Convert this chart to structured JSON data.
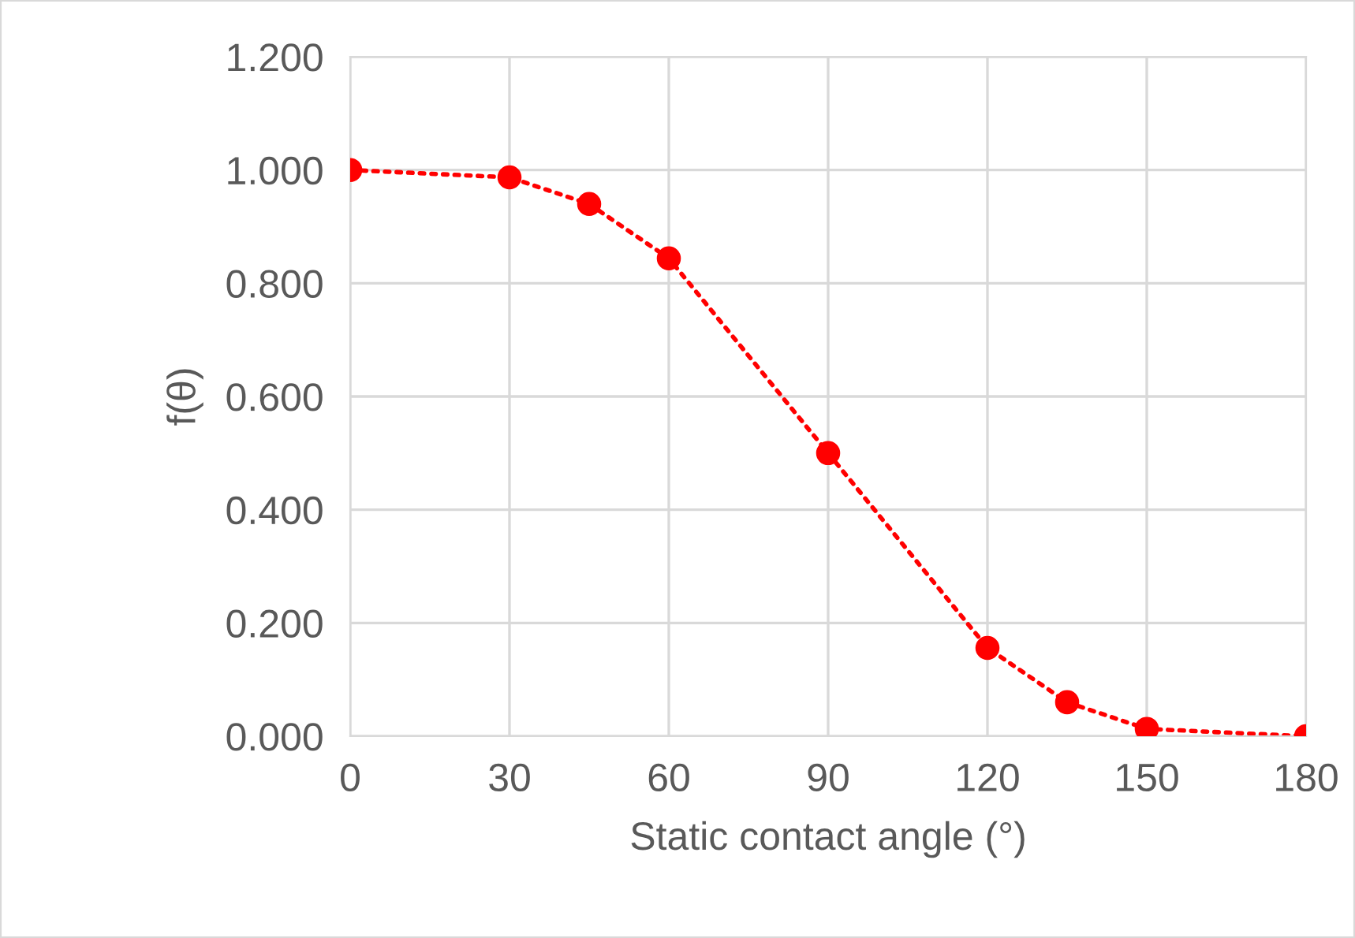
{
  "chart_data": {
    "type": "line",
    "xlabel": "Static contact angle (°)",
    "ylabel": "f(θ)",
    "series": [
      {
        "color": "#ff0000",
        "x": [
          0,
          30,
          45,
          60,
          90,
          120,
          135,
          150,
          180
        ],
        "values": [
          1.0,
          0.987,
          0.94,
          0.844,
          0.5,
          0.156,
          0.06,
          0.013,
          0.0
        ]
      }
    ],
    "xlim": [
      0,
      180
    ],
    "xticks": [
      0,
      30,
      60,
      90,
      120,
      150,
      180
    ],
    "ylim": [
      0,
      1.2
    ],
    "yticks": [
      {
        "value": 0,
        "label": "0.000"
      },
      {
        "value": 0.2,
        "label": "0.200"
      },
      {
        "value": 0.4,
        "label": "0.400"
      },
      {
        "value": 0.6,
        "label": "0.600"
      },
      {
        "value": 0.8,
        "label": "0.800"
      },
      {
        "value": 1.0,
        "label": "1.000"
      },
      {
        "value": 1.2,
        "label": "1.200"
      }
    ],
    "grid": true,
    "marker": "circle",
    "line_style": "dotted"
  }
}
